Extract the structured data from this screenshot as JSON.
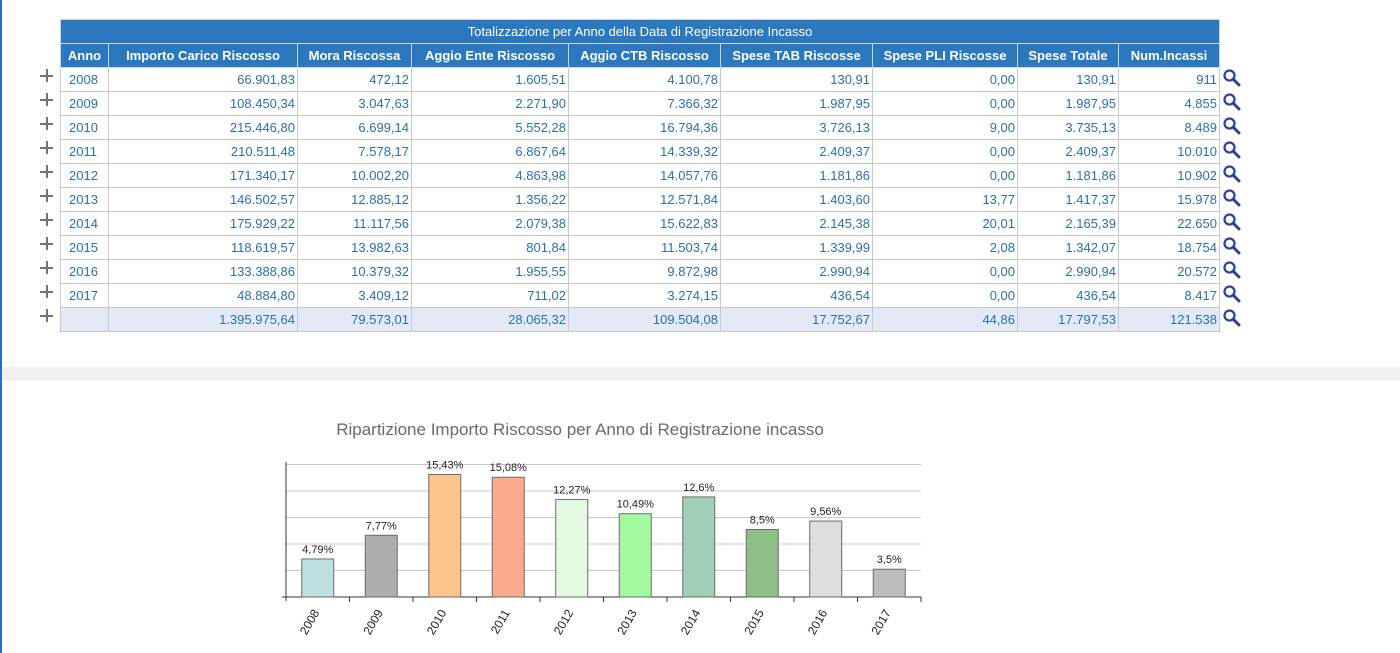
{
  "table": {
    "title": "Totalizzazione per Anno della Data di Registrazione Incasso",
    "columns": [
      "Anno",
      "Importo Carico Riscosso",
      "Mora Riscossa",
      "Aggio Ente Riscosso",
      "Aggio CTB Riscosso",
      "Spese TAB Riscosse",
      "Spese PLI Riscosse",
      "Spese Totale",
      "Num.Incassi"
    ],
    "rows": [
      [
        "2008",
        "66.901,83",
        "472,12",
        "1.605,51",
        "4.100,78",
        "130,91",
        "0,00",
        "130,91",
        "911"
      ],
      [
        "2009",
        "108.450,34",
        "3.047,63",
        "2.271,90",
        "7.366,32",
        "1.987,95",
        "0,00",
        "1.987,95",
        "4.855"
      ],
      [
        "2010",
        "215.446,80",
        "6.699,14",
        "5.552,28",
        "16.794,36",
        "3.726,13",
        "9,00",
        "3.735,13",
        "8.489"
      ],
      [
        "2011",
        "210.511,48",
        "7.578,17",
        "6.867,64",
        "14.339,32",
        "2.409,37",
        "0,00",
        "2.409,37",
        "10.010"
      ],
      [
        "2012",
        "171.340,17",
        "10.002,20",
        "4.863,98",
        "14.057,76",
        "1.181,86",
        "0,00",
        "1.181,86",
        "10.902"
      ],
      [
        "2013",
        "146.502,57",
        "12.885,12",
        "1.356,22",
        "12.571,84",
        "1.403,60",
        "13,77",
        "1.417,37",
        "15.978"
      ],
      [
        "2014",
        "175.929,22",
        "11.117,56",
        "2.079,38",
        "15.622,83",
        "2.145,38",
        "20,01",
        "2.165,39",
        "22.650"
      ],
      [
        "2015",
        "118.619,57",
        "13.982,63",
        "801,84",
        "11.503,74",
        "1.339,99",
        "2,08",
        "1.342,07",
        "18.754"
      ],
      [
        "2016",
        "133.388,86",
        "10.379,32",
        "1.955,55",
        "9.872,98",
        "2.990,94",
        "0,00",
        "2.990,94",
        "20.572"
      ],
      [
        "2017",
        "48.884,80",
        "3.409,12",
        "711,02",
        "3.274,15",
        "436,54",
        "0,00",
        "436,54",
        "8.417"
      ]
    ],
    "total_row": [
      "",
      "1.395.975,64",
      "79.573,01",
      "28.065,32",
      "109.504,08",
      "17.752,67",
      "44,86",
      "17.797,53",
      "121.538"
    ]
  },
  "icons": {
    "expand": "plus-icon",
    "detail": "magnifier-icon"
  },
  "colors": {
    "header": "#2b78be",
    "cell_text": "#2c6fae",
    "total_row_bg": "#e4e9f8"
  },
  "chart_data": {
    "type": "bar",
    "title": "Ripartizione Importo Riscosso per Anno di Registrazione incasso",
    "xlabel": "",
    "ylabel": "",
    "categories": [
      "2008",
      "2009",
      "2010",
      "2011",
      "2012",
      "2013",
      "2014",
      "2015",
      "2016",
      "2017"
    ],
    "values": [
      4.79,
      7.77,
      15.43,
      15.08,
      12.27,
      10.49,
      12.6,
      8.5,
      9.56,
      3.5
    ],
    "labels": [
      "4,79%",
      "7,77%",
      "15,43%",
      "15,08%",
      "12,27%",
      "10,49%",
      "12,6%",
      "8,5%",
      "9,56%",
      "3,5%"
    ],
    "colors": [
      "#bfe0e1",
      "#aeaeae",
      "#fbc58b",
      "#f9ab8b",
      "#e4fbe2",
      "#a3fa9c",
      "#a0cfb5",
      "#8dbf87",
      "#dedede",
      "#bcbcbc"
    ],
    "ylim": [
      0,
      17
    ],
    "grid": true,
    "legend": "none"
  }
}
